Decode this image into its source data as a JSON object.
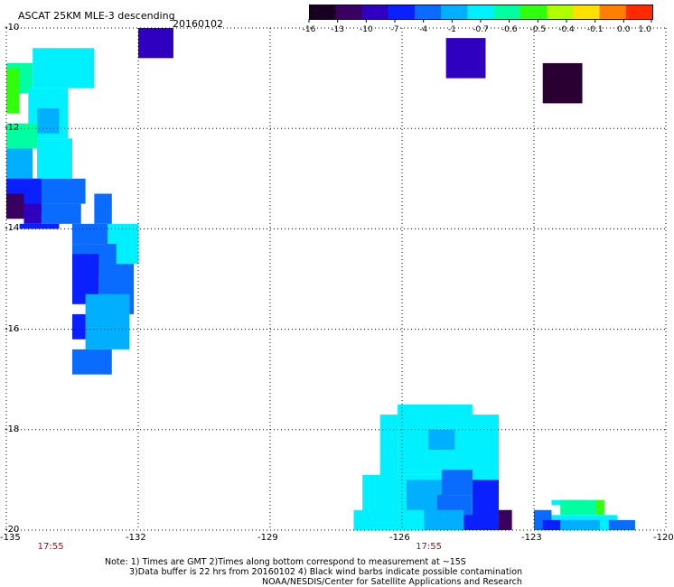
{
  "header": {
    "title": "ASCAT 25KM MLE-3 descending",
    "date": "20160102"
  },
  "colorbar": {
    "labels": [
      "-16",
      "-13",
      "-10",
      "-7",
      "-4",
      "-1",
      "-0.7",
      "-0.6",
      "-0.5",
      "-0.4",
      "-0.1",
      "0.0",
      "1.0"
    ],
    "colors": [
      "#1a0020",
      "#3a0060",
      "#3000c0",
      "#0a20ff",
      "#0a6cff",
      "#00b0ff",
      "#00f0ff",
      "#00ffa0",
      "#30ff10",
      "#b0ff00",
      "#ffe000",
      "#ff8000",
      "#ff2a00"
    ]
  },
  "map": {
    "x_axis": {
      "labels": [
        "-135",
        "-132",
        "-129",
        "-126",
        "-123",
        "-120"
      ],
      "values": [
        -135,
        -132,
        -129,
        -126,
        -123,
        -120
      ]
    },
    "y_axis": {
      "labels": [
        "-10",
        "-12",
        "-14",
        "-16",
        "-18",
        "-20"
      ],
      "values": [
        -10,
        -12,
        -14,
        -16,
        -18,
        -20
      ]
    },
    "time_labels": [
      {
        "text": "17:55",
        "lon": -134
      },
      {
        "text": "17:55",
        "lon": -125.4
      }
    ],
    "cell_size_deg": 0.25,
    "regions": [
      {
        "color": "#00f0ff",
        "lon": [
          -134.4,
          -133.0
        ],
        "lat": [
          -10.4,
          -11.2
        ]
      },
      {
        "color": "#00ffa0",
        "lon": [
          -135.0,
          -134.4
        ],
        "lat": [
          -10.7,
          -11.3
        ]
      },
      {
        "color": "#30ff10",
        "lon": [
          -135.0,
          -134.7
        ],
        "lat": [
          -10.8,
          -11.7
        ]
      },
      {
        "color": "#00f0ff",
        "lon": [
          -134.5,
          -133.6
        ],
        "lat": [
          -11.2,
          -12.2
        ]
      },
      {
        "color": "#00b0ff",
        "lon": [
          -134.3,
          -133.8
        ],
        "lat": [
          -11.6,
          -12.1
        ]
      },
      {
        "color": "#00ffa0",
        "lon": [
          -135.0,
          -134.3
        ],
        "lat": [
          -11.9,
          -12.4
        ]
      },
      {
        "color": "#00f0ff",
        "lon": [
          -134.3,
          -133.5
        ],
        "lat": [
          -12.2,
          -13.0
        ]
      },
      {
        "color": "#00b0ff",
        "lon": [
          -135.0,
          -134.4
        ],
        "lat": [
          -12.4,
          -13.0
        ]
      },
      {
        "color": "#0a6cff",
        "lon": [
          -135.0,
          -133.2
        ],
        "lat": [
          -13.0,
          -13.5
        ]
      },
      {
        "color": "#0a20ff",
        "lon": [
          -135.0,
          -134.2
        ],
        "lat": [
          -13.0,
          -13.7
        ]
      },
      {
        "color": "#3a0060",
        "lon": [
          -135.0,
          -134.6
        ],
        "lat": [
          -13.3,
          -13.8
        ]
      },
      {
        "color": "#3000c0",
        "lon": [
          -134.6,
          -134.2
        ],
        "lat": [
          -13.5,
          -13.9
        ]
      },
      {
        "color": "#0a6cff",
        "lon": [
          -134.2,
          -133.3
        ],
        "lat": [
          -13.5,
          -13.9
        ]
      },
      {
        "color": "#0a20ff",
        "lon": [
          -134.7,
          -133.8
        ],
        "lat": [
          -13.9,
          -14.0
        ]
      },
      {
        "color": "#0a6cff",
        "lon": [
          -133.0,
          -132.6
        ],
        "lat": [
          -13.3,
          -13.9
        ]
      },
      {
        "color": "#0a6cff",
        "lon": [
          -133.5,
          -132.6
        ],
        "lat": [
          -13.9,
          -14.3
        ]
      },
      {
        "color": "#00f0ff",
        "lon": [
          -132.7,
          -132.0
        ],
        "lat": [
          -13.9,
          -14.7
        ]
      },
      {
        "color": "#0a6cff",
        "lon": [
          -133.5,
          -132.5
        ],
        "lat": [
          -14.3,
          -14.9
        ]
      },
      {
        "color": "#0a20ff",
        "lon": [
          -133.5,
          -132.9
        ],
        "lat": [
          -14.5,
          -15.5
        ]
      },
      {
        "color": "#0a6cff",
        "lon": [
          -132.9,
          -132.1
        ],
        "lat": [
          -14.7,
          -15.7
        ]
      },
      {
        "color": "#00b0ff",
        "lon": [
          -133.2,
          -132.2
        ],
        "lat": [
          -15.3,
          -16.4
        ]
      },
      {
        "color": "#0a20ff",
        "lon": [
          -133.5,
          -133.2
        ],
        "lat": [
          -15.7,
          -16.2
        ]
      },
      {
        "color": "#0a6cff",
        "lon": [
          -133.5,
          -132.6
        ],
        "lat": [
          -16.4,
          -16.9
        ]
      },
      {
        "color": "#3000c0",
        "lon": [
          -132.0,
          -131.2
        ],
        "lat": [
          -10.0,
          -10.6
        ]
      },
      {
        "color": "#3000c0",
        "lon": [
          -125.0,
          -124.1
        ],
        "lat": [
          -10.2,
          -11.0
        ]
      },
      {
        "color": "#2a0033",
        "lon": [
          -122.8,
          -121.9
        ],
        "lat": [
          -10.7,
          -11.5
        ]
      },
      {
        "color": "#00f0ff",
        "lon": [
          -126.1,
          -124.4
        ],
        "lat": [
          -17.5,
          -18.9
        ]
      },
      {
        "color": "#00f0ff",
        "lon": [
          -126.5,
          -126.1
        ],
        "lat": [
          -17.7,
          -19.3
        ]
      },
      {
        "color": "#00b0ff",
        "lon": [
          -125.4,
          -124.4
        ],
        "lat": [
          -18.0,
          -18.4
        ]
      },
      {
        "color": "#00f0ff",
        "lon": [
          -124.8,
          -123.8
        ],
        "lat": [
          -17.7,
          -19.1
        ]
      },
      {
        "color": "#00f0ff",
        "lon": [
          -126.9,
          -125.0
        ],
        "lat": [
          -18.9,
          -19.8
        ]
      },
      {
        "color": "#00b0ff",
        "lon": [
          -125.9,
          -125.0
        ],
        "lat": [
          -19.0,
          -19.8
        ]
      },
      {
        "color": "#0a6cff",
        "lon": [
          -125.1,
          -124.4
        ],
        "lat": [
          -18.8,
          -19.3
        ]
      },
      {
        "color": "#0a20ff",
        "lon": [
          -124.4,
          -123.8
        ],
        "lat": [
          -19.0,
          -19.8
        ]
      },
      {
        "color": "#0a6cff",
        "lon": [
          -125.2,
          -124.4
        ],
        "lat": [
          -19.3,
          -19.8
        ]
      },
      {
        "color": "#00f0ff",
        "lon": [
          -127.1,
          -125.5
        ],
        "lat": [
          -19.6,
          -20.0
        ]
      },
      {
        "color": "#00b0ff",
        "lon": [
          -125.5,
          -124.6
        ],
        "lat": [
          -19.6,
          -20.0
        ]
      },
      {
        "color": "#0a20ff",
        "lon": [
          -124.6,
          -123.8
        ],
        "lat": [
          -19.7,
          -20.0
        ]
      },
      {
        "color": "#3a0060",
        "lon": [
          -123.8,
          -123.5
        ],
        "lat": [
          -19.6,
          -20.0
        ]
      },
      {
        "color": "#00f0ff",
        "lon": [
          -122.6,
          -121.8
        ],
        "lat": [
          -19.4,
          -19.5
        ]
      },
      {
        "color": "#00ffa0",
        "lon": [
          -122.4,
          -121.6
        ],
        "lat": [
          -19.4,
          -19.7
        ]
      },
      {
        "color": "#30ff10",
        "lon": [
          -121.6,
          -121.4
        ],
        "lat": [
          -19.4,
          -19.7
        ]
      },
      {
        "color": "#00f0ff",
        "lon": [
          -122.6,
          -121.1
        ],
        "lat": [
          -19.7,
          -20.0
        ]
      },
      {
        "color": "#0a6cff",
        "lon": [
          -123.0,
          -122.6
        ],
        "lat": [
          -19.6,
          -20.0
        ]
      },
      {
        "color": "#0a20ff",
        "lon": [
          -122.8,
          -122.3
        ],
        "lat": [
          -19.8,
          -20.0
        ]
      },
      {
        "color": "#00b0ff",
        "lon": [
          -122.4,
          -121.5
        ],
        "lat": [
          -19.8,
          -20.0
        ]
      },
      {
        "color": "#0a6cff",
        "lon": [
          -121.3,
          -120.7
        ],
        "lat": [
          -19.8,
          -20.0
        ]
      }
    ]
  },
  "notes": {
    "line1": "Note: 1) Times are GMT 2)Times along bottom correspond to measurement at ~15S",
    "line2": "3)Data buffer is 22 hrs from 20160102 4) Black wind barbs indicate possible contamination",
    "line3": "NOAA/NESDIS/Center for Satellite Applications and Research"
  }
}
